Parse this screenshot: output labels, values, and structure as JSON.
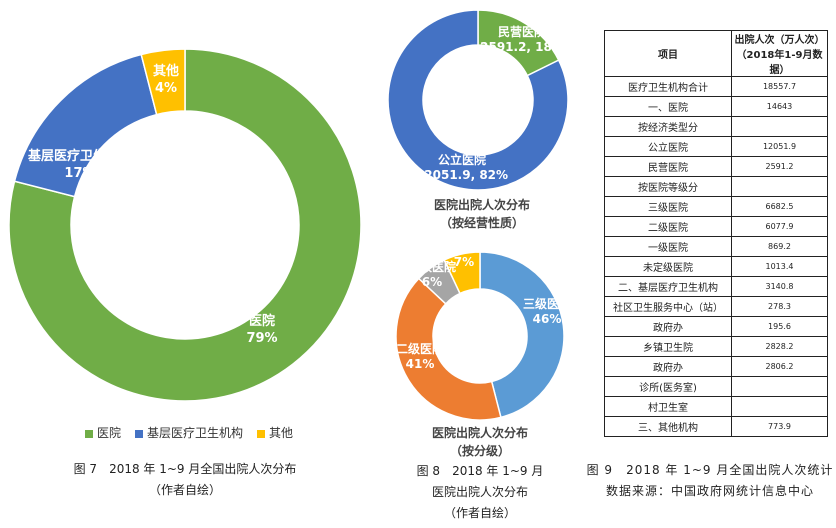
{
  "chart_data": [
    {
      "type": "pie",
      "donut": true,
      "categories": [
        "医院",
        "基层医疗卫生机构",
        "其他"
      ],
      "values": [
        79,
        17,
        4
      ],
      "labels": [
        "79%",
        "17%",
        "4%"
      ],
      "colors": [
        "#70AD47",
        "#4472C4",
        "#FFC000"
      ],
      "legend": "bottom",
      "caption": [
        "图 7　2018 年 1~9 月全国出院人次分布",
        "（作者自绘）"
      ]
    },
    {
      "type": "pie",
      "donut": true,
      "title": [
        "医院出院人次分布",
        "（按经营性质）"
      ],
      "categories": [
        "民营医院",
        "公立医院"
      ],
      "values": [
        2591.2,
        12051.9
      ],
      "labels": [
        "2591.2, 18%",
        "12051.9, 82%"
      ],
      "colors": [
        "#70AD47",
        "#4472C4"
      ]
    },
    {
      "type": "pie",
      "donut": true,
      "title": [
        "医院出院人次分布",
        "（按分级）"
      ],
      "categories": [
        "三级医院",
        "二级医院",
        "一级医院",
        "未定级"
      ],
      "values": [
        46,
        41,
        6,
        7
      ],
      "labels": [
        "46%",
        "41%",
        "6%",
        "7%"
      ],
      "colors": [
        "#5B9BD5",
        "#ED7D31",
        "#A5A5A5",
        "#FFC000"
      ],
      "caption": [
        "图 8　2018 年 1~9 月",
        "医院出院人次分布",
        "（作者自绘）"
      ]
    },
    {
      "type": "table",
      "header": [
        "项目",
        "出院人次（万人次）",
        "（2018年1-9月数据）"
      ],
      "rows": [
        [
          "医疗卫生机构合计",
          "18557.7"
        ],
        [
          "一、医院",
          "14643"
        ],
        [
          "按经济类型分",
          ""
        ],
        [
          "公立医院",
          "12051.9"
        ],
        [
          "民营医院",
          "2591.2"
        ],
        [
          "按医院等级分",
          ""
        ],
        [
          "三级医院",
          "6682.5"
        ],
        [
          "二级医院",
          "6077.9"
        ],
        [
          "一级医院",
          "869.2"
        ],
        [
          "未定级医院",
          "1013.4"
        ],
        [
          "二、基层医疗卫生机构",
          "3140.8"
        ],
        [
          "社区卫生服务中心（站）",
          "278.3"
        ],
        [
          "政府办",
          "195.6"
        ],
        [
          "乡镇卫生院",
          "2828.2"
        ],
        [
          "政府办",
          "2806.2"
        ],
        [
          "诊所(医务室)",
          ""
        ],
        [
          "村卫生室",
          ""
        ],
        [
          "三、其他机构",
          "773.9"
        ]
      ],
      "caption": [
        "图 9　2018 年 1~9 月全国出院人次统计",
        "数据来源：中国政府网统计信息中心"
      ]
    }
  ]
}
